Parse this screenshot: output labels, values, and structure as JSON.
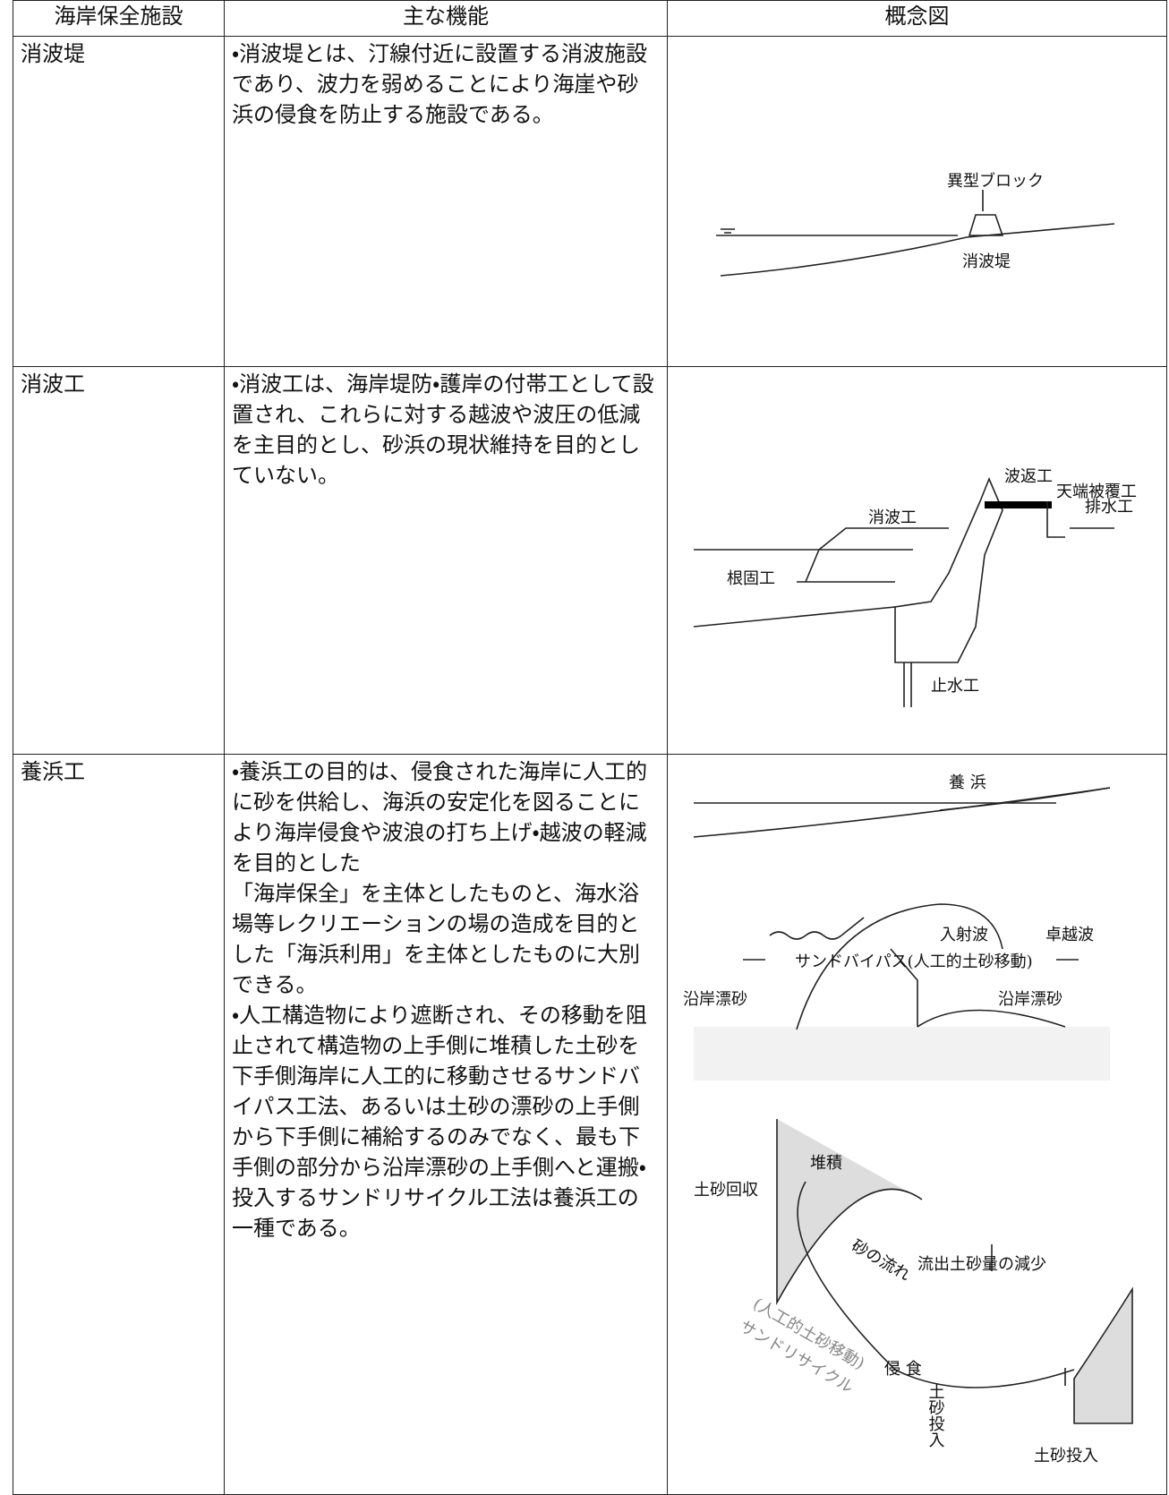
{
  "table": {
    "header": [
      "海岸保全施設",
      "主な機能",
      "概念図"
    ],
    "rows": [
      {
        "name": "消波堤",
        "function": [
          "・消波堤とは、汀線付近に設置する消波施設であり、波力を弱めることにより海崖や砂浜の侵食を防止する施設である。"
        ],
        "diagram": {
          "labels": [
            "異型ブロック",
            "消波堤"
          ]
        }
      },
      {
        "name": "消波工",
        "function": [
          "・消波工は、海岸堤防・護岸の付帯工として設置され、これらに対する越波や波圧の低減を主目的とし、砂浜の現状維持を目的としていない。"
        ],
        "diagram": {
          "labels": [
            "波返工",
            "天端被覆工",
            "排水工",
            "消波工",
            "根固工",
            "止水工"
          ]
        }
      },
      {
        "name": "養浜工",
        "function": [
          "・養浜工の目的は、侵食された海岸に人工的に砂を供給し、海浜の安定化を図ることにより海岸侵食や波浪の打ち上げ・越波の軽減を目的とした",
          "「海岸保全」を主体としたものと、海水浴場等レクリエーションの場の造成を目的とした「海浜利用」を主体としたものに大別できる。",
          "・人工構造物により遮断され、その移動を阻止されて構造物の上手側に堆積した土砂を下手側海岸に人工的に移動させるサンドバイパス工法、あるいは土砂の漂砂の上手側から下手側に補給するのみでなく、最も下手側の部分から沿岸漂砂の上手側へと運搬・投入するサンドリサイクル工法は養浜工の一種である。"
        ],
        "diagram": {
          "labels": [
            "養 浜",
            "入射波",
            "サンドバイパス(人工的土砂移動)",
            "沿岸漂砂",
            "沿岸漂砂",
            "卓越波",
            "堆積",
            "土砂回収",
            "砂の流れ",
            "流出土砂量の減少",
            "(人工的土砂移動)",
            "サンドリサイクル",
            "侵 食",
            "土砂投入",
            "土砂投入"
          ]
        }
      }
    ]
  }
}
